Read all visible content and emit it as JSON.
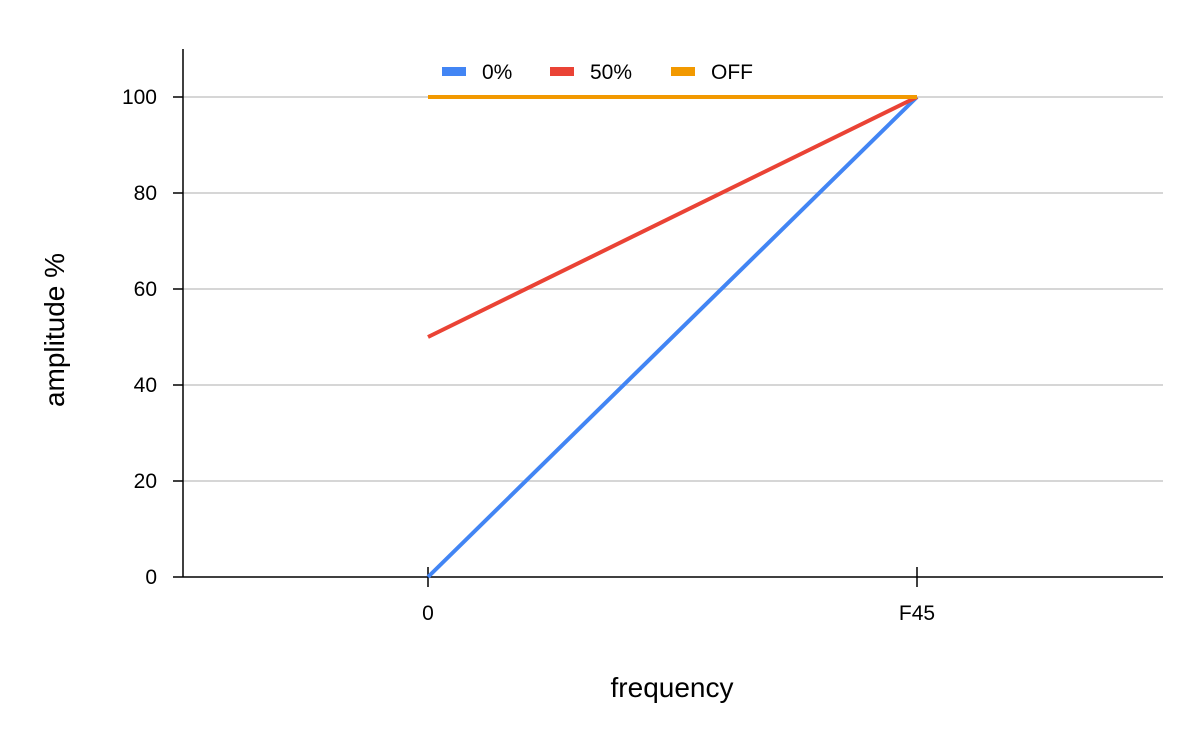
{
  "chart_data": {
    "type": "line",
    "title": "",
    "xlabel": "frequency",
    "ylabel": "amplitude %",
    "categories": [
      "0",
      "F45"
    ],
    "ylim": [
      0,
      110
    ],
    "yticks": [
      0,
      20,
      40,
      60,
      80,
      100
    ],
    "grid": true,
    "legend_position": "top",
    "series": [
      {
        "name": "0%",
        "color": "#4285F4",
        "values": [
          0,
          100
        ]
      },
      {
        "name": "50%",
        "color": "#EA4335",
        "values": [
          50,
          100
        ]
      },
      {
        "name": "OFF",
        "color": "#F29900",
        "values": [
          100,
          100
        ]
      }
    ]
  }
}
